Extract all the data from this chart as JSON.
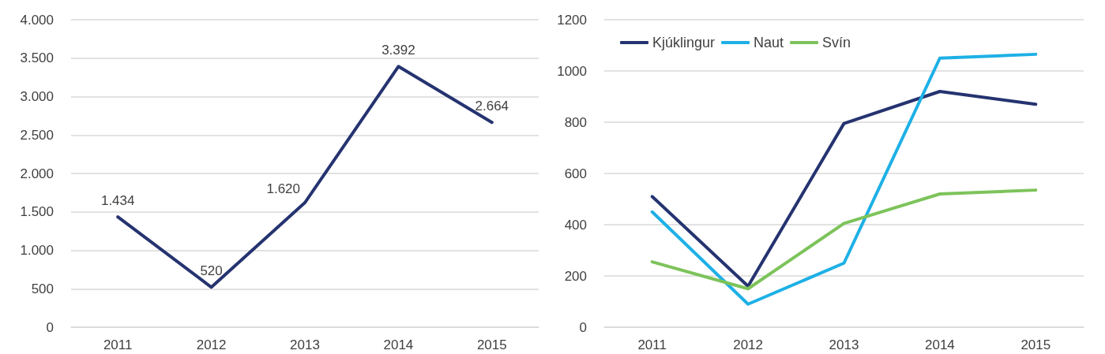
{
  "chart_data": [
    {
      "type": "line",
      "categories": [
        "2011",
        "2012",
        "2013",
        "2014",
        "2015"
      ],
      "series": [
        {
          "color": "#253370",
          "values": [
            1434,
            520,
            1620,
            3392,
            2664
          ],
          "value_labels": [
            "1.434",
            "520",
            "1.620",
            "3.392",
            "2.664"
          ]
        }
      ],
      "ylim": [
        0,
        4000
      ],
      "yticks": [
        {
          "value": 0,
          "label": "0"
        },
        {
          "value": 500,
          "label": "500"
        },
        {
          "value": 1000,
          "label": "1.000"
        },
        {
          "value": 1500,
          "label": "1.500"
        },
        {
          "value": 2000,
          "label": "2.000"
        },
        {
          "value": 2500,
          "label": "2.500"
        },
        {
          "value": 3000,
          "label": "3.000"
        },
        {
          "value": 3500,
          "label": "3.500"
        },
        {
          "value": 4000,
          "label": "4.000"
        }
      ],
      "grid": "y",
      "legend": false,
      "marker": "none",
      "line_style": "solid"
    },
    {
      "type": "line",
      "categories": [
        "2011",
        "2012",
        "2013",
        "2014",
        "2015"
      ],
      "series": [
        {
          "name": "Kjúklingur",
          "color": "#253370",
          "values": [
            510,
            160,
            795,
            920,
            870
          ]
        },
        {
          "name": "Naut",
          "color": "#1eb0e6",
          "values": [
            450,
            90,
            250,
            1050,
            1065
          ]
        },
        {
          "name": "Svín",
          "color": "#7dc35b",
          "values": [
            255,
            150,
            405,
            520,
            535
          ]
        }
      ],
      "ylim": [
        0,
        1200
      ],
      "yticks": [
        0,
        200,
        400,
        600,
        800,
        1000,
        1200
      ],
      "grid": "y",
      "legend": "top left",
      "marker": "none",
      "line_style": "solid"
    }
  ]
}
